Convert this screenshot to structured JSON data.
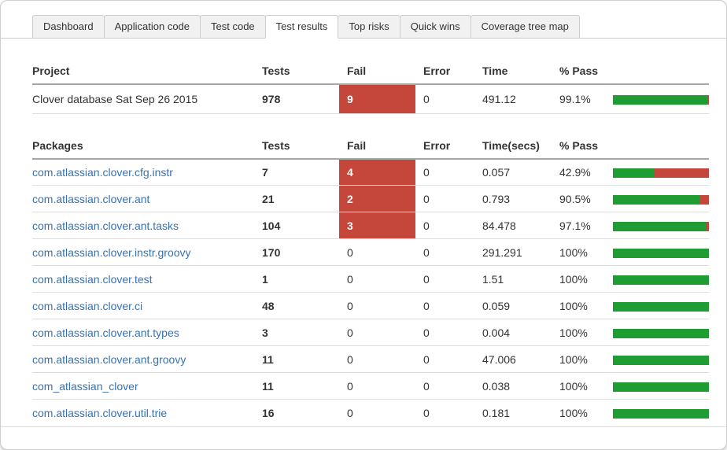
{
  "tabs": [
    {
      "label": "Dashboard",
      "active": false
    },
    {
      "label": "Application code",
      "active": false
    },
    {
      "label": "Test code",
      "active": false
    },
    {
      "label": "Test results",
      "active": true
    },
    {
      "label": "Top risks",
      "active": false
    },
    {
      "label": "Quick wins",
      "active": false
    },
    {
      "label": "Coverage tree map",
      "active": false
    }
  ],
  "project": {
    "headers": {
      "name": "Project",
      "tests": "Tests",
      "fail": "Fail",
      "error": "Error",
      "time": "Time",
      "pass": "% Pass"
    },
    "row": {
      "name": "Clover database Sat Sep 26 2015",
      "tests": "978",
      "fail": "9",
      "error": "0",
      "time": "491.12",
      "pass": "99.1%",
      "pass_pct": 99.1,
      "failing": true
    }
  },
  "packages": {
    "headers": {
      "name": "Packages",
      "tests": "Tests",
      "fail": "Fail",
      "error": "Error",
      "time": "Time(secs)",
      "pass": "% Pass"
    },
    "rows": [
      {
        "name": "com.atlassian.clover.cfg.instr",
        "tests": "7",
        "fail": "4",
        "error": "0",
        "time": "0.057",
        "pass": "42.9%",
        "pass_pct": 42.9,
        "failing": true
      },
      {
        "name": "com.atlassian.clover.ant",
        "tests": "21",
        "fail": "2",
        "error": "0",
        "time": "0.793",
        "pass": "90.5%",
        "pass_pct": 90.5,
        "failing": true
      },
      {
        "name": "com.atlassian.clover.ant.tasks",
        "tests": "104",
        "fail": "3",
        "error": "0",
        "time": "84.478",
        "pass": "97.1%",
        "pass_pct": 97.1,
        "failing": true
      },
      {
        "name": "com.atlassian.clover.instr.groovy",
        "tests": "170",
        "fail": "0",
        "error": "0",
        "time": "291.291",
        "pass": "100%",
        "pass_pct": 100,
        "failing": false
      },
      {
        "name": "com.atlassian.clover.test",
        "tests": "1",
        "fail": "0",
        "error": "0",
        "time": "1.51",
        "pass": "100%",
        "pass_pct": 100,
        "failing": false
      },
      {
        "name": "com.atlassian.clover.ci",
        "tests": "48",
        "fail": "0",
        "error": "0",
        "time": "0.059",
        "pass": "100%",
        "pass_pct": 100,
        "failing": false
      },
      {
        "name": "com.atlassian.clover.ant.types",
        "tests": "3",
        "fail": "0",
        "error": "0",
        "time": "0.004",
        "pass": "100%",
        "pass_pct": 100,
        "failing": false
      },
      {
        "name": "com.atlassian.clover.ant.groovy",
        "tests": "11",
        "fail": "0",
        "error": "0",
        "time": "47.006",
        "pass": "100%",
        "pass_pct": 100,
        "failing": false
      },
      {
        "name": "com_atlassian_clover",
        "tests": "11",
        "fail": "0",
        "error": "0",
        "time": "0.038",
        "pass": "100%",
        "pass_pct": 100,
        "failing": false
      },
      {
        "name": "com.atlassian.clover.util.trie",
        "tests": "16",
        "fail": "0",
        "error": "0",
        "time": "0.181",
        "pass": "100%",
        "pass_pct": 100,
        "failing": false
      }
    ]
  },
  "colors": {
    "fail_red": "#c5473c",
    "bar_green": "#1f9d33",
    "link_blue": "#3572b0"
  }
}
